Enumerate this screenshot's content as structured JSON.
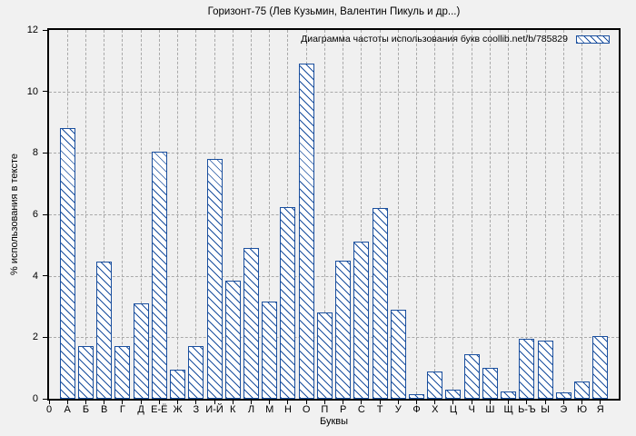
{
  "chart_data": {
    "type": "bar",
    "title": "Горизонт-75 (Лев Кузьмин, Валентин Пикуль и др...)",
    "legend_label": "Диаграмма частоты использования букв coollib.net/b/785829",
    "legend_position": "top-right-inside",
    "xlabel": "Буквы",
    "ylabel": "% использования в тексте",
    "origin_label": "0",
    "ylim": [
      0,
      12
    ],
    "yticks": [
      0,
      2,
      4,
      6,
      8,
      10,
      12
    ],
    "grid": true,
    "categories": [
      "А",
      "Б",
      "В",
      "Г",
      "Д",
      "Е-Ё",
      "Ж",
      "З",
      "И-Й",
      "К",
      "Л",
      "М",
      "Н",
      "О",
      "П",
      "Р",
      "С",
      "Т",
      "У",
      "Ф",
      "Х",
      "Ц",
      "Ч",
      "Ш",
      "Щ",
      "Ь-Ъ",
      "Ы",
      "Э",
      "Ю",
      "Я"
    ],
    "values": [
      8.8,
      1.7,
      4.45,
      1.7,
      3.1,
      8.05,
      0.95,
      1.7,
      7.8,
      3.85,
      4.9,
      3.15,
      6.25,
      10.9,
      2.8,
      4.5,
      5.1,
      6.2,
      2.9,
      0.15,
      0.9,
      0.3,
      1.45,
      1.0,
      0.25,
      1.95,
      1.9,
      0.2,
      0.55,
      2.05
    ]
  },
  "colors": {
    "bar_stroke": "#1a4f9e",
    "bar_fill": "#ffffff",
    "page_background": "#f1f1f1",
    "plot_background": "#f0f0f0",
    "grid": "#a9a9a9",
    "axis": "#000000"
  }
}
